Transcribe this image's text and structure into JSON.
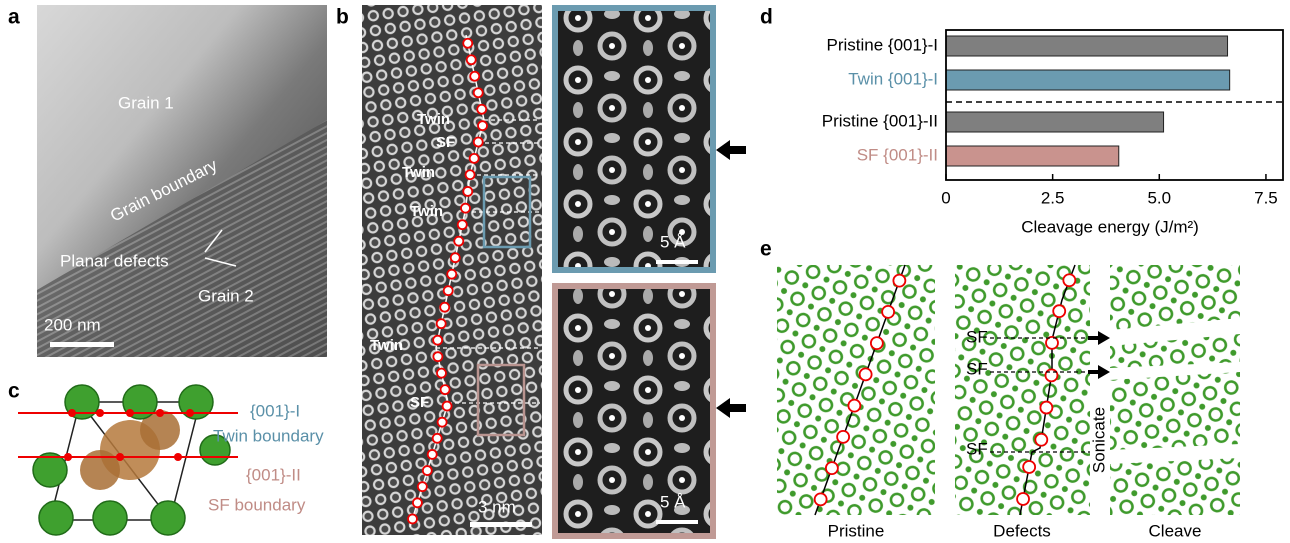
{
  "panel_labels": [
    "a",
    "b",
    "c",
    "d",
    "e"
  ],
  "panel_a": {
    "labels": [
      "Grain 1",
      "Grain boundary",
      "Planar defects",
      "Grain 2"
    ],
    "scale_bar": "200 nm"
  },
  "panel_b": {
    "labels": [
      "Twin",
      "SF",
      "Twin",
      "Twin",
      "Twin",
      "SF"
    ],
    "scale_bar": "3 nm",
    "inset_scale_bars": [
      "5 Å",
      "5 Å"
    ]
  },
  "panel_c": {
    "labels": [
      "{001}-I",
      "Twin boundary",
      "{001}-II",
      "SF boundary"
    ]
  },
  "chart_data": {
    "type": "bar",
    "orientation": "horizontal",
    "categories": [
      "Pristine {001}-I",
      "Twin {001}-I",
      "Pristine {001}-II",
      "SF {001}-II"
    ],
    "values": [
      6.6,
      6.65,
      5.1,
      4.05
    ],
    "colors": [
      "#7f7f7f",
      "#6b9bb0",
      "#7f7f7f",
      "#c9938e"
    ],
    "label_colors": [
      "#000000",
      "#5a90a8",
      "#000000",
      "#c08c86"
    ],
    "xlabel": "Cleavage energy (J/m²)",
    "xlim": [
      0,
      7.9
    ],
    "xticks": [
      0,
      2.5,
      {
        "value": 5,
        "label": "5.0"
      },
      7.5
    ]
  },
  "panel_e": {
    "labels": [
      "SF",
      "SF",
      "SF"
    ],
    "process": "Sonicate",
    "captions": [
      "Pristine",
      "Defects",
      "Cleave"
    ]
  }
}
